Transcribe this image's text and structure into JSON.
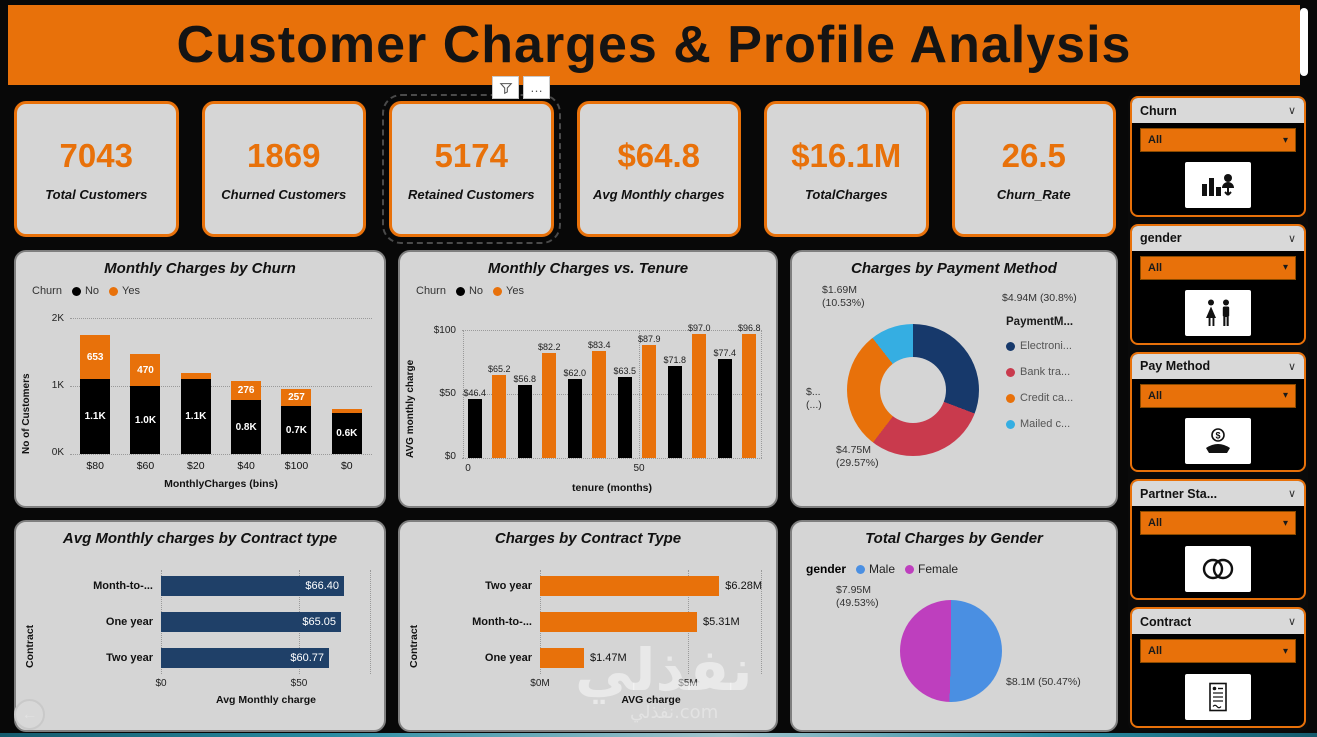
{
  "header": {
    "title": "Customer Charges & Profile Analysis"
  },
  "toolbar": {
    "more_label": "…"
  },
  "kpis": [
    {
      "value": "7043",
      "label": "Total Customers"
    },
    {
      "value": "1869",
      "label": "Churned Customers"
    },
    {
      "value": "5174",
      "label": "Retained Customers",
      "selected": true
    },
    {
      "value": "$64.8",
      "label": "Avg Monthly charges"
    },
    {
      "value": "$16.1M",
      "label": "TotalCharges"
    },
    {
      "value": "26.5",
      "label": "Churn_Rate"
    }
  ],
  "chart_data": [
    {
      "type": "bar",
      "variant": "stacked",
      "title": "Monthly Charges by Churn",
      "legend_title": "Churn",
      "categories": [
        "$80",
        "$60",
        "$20",
        "$40",
        "$100",
        "$0"
      ],
      "series": [
        {
          "name": "No",
          "color": "#000000",
          "values": [
            1100,
            1000,
            1100,
            800,
            700,
            600
          ],
          "labels": [
            "1.1K",
            "1.0K",
            "1.1K",
            "0.8K",
            "0.7K",
            "0.6K"
          ]
        },
        {
          "name": "Yes",
          "color": "#E8710A",
          "values": [
            653,
            470,
            90,
            276,
            257,
            55
          ],
          "labels": [
            "653",
            "470",
            "",
            "276",
            "257",
            ""
          ]
        }
      ],
      "xlabel": "MonthlyCharges (bins)",
      "ylabel": "No of Customers",
      "yticks": [
        "2K",
        "1K",
        "0K"
      ],
      "ylim": [
        0,
        2000
      ]
    },
    {
      "type": "bar",
      "variant": "grouped",
      "title": "Monthly Charges vs. Tenure",
      "legend_title": "Churn",
      "series": [
        {
          "name": "No",
          "color": "#000000",
          "values": [
            46.4,
            56.8,
            62.0,
            63.5,
            71.8,
            77.4
          ],
          "labels": [
            "$46.4",
            "$56.8",
            "$62.0",
            "$63.5",
            "$71.8",
            "$77.4"
          ]
        },
        {
          "name": "Yes",
          "color": "#E8710A",
          "values": [
            65.2,
            82.2,
            83.4,
            87.9,
            97.0,
            96.8
          ],
          "labels": [
            "$65.2",
            "$82.2",
            "$83.4",
            "$87.9",
            "$97.0",
            "$96.8"
          ]
        }
      ],
      "xlabel": "tenure (months)",
      "ylabel": "AVG monthly charge",
      "yticks": [
        "$100",
        "$50",
        "$0"
      ],
      "xticks": [
        "0",
        "50"
      ],
      "ylim": [
        0,
        100
      ]
    },
    {
      "type": "donut",
      "title": "Charges by Payment Method",
      "legend_title": "PaymentM...",
      "slices": [
        {
          "name": "Electroni...",
          "color": "#17396B",
          "value_label": "$4.94M",
          "pct_label": "(30.8%)",
          "pct": 30.8
        },
        {
          "name": "Bank tra...",
          "color": "#C93A4D",
          "value_label": "$4.75M",
          "pct_label": "(29.57%)",
          "pct": 29.57
        },
        {
          "name": "Credit ca...",
          "color": "#E8710A",
          "value_label": "$...",
          "pct_label": "(...)",
          "pct": 29.1
        },
        {
          "name": "Mailed c...",
          "color": "#35AEE2",
          "value_label": "$1.69M",
          "pct_label": "(10.53%)",
          "pct": 10.53
        }
      ]
    },
    {
      "type": "hbar",
      "title": "Avg Monthly charges by Contract type",
      "categories": [
        "Month-to-...",
        "One year",
        "Two year"
      ],
      "values": [
        66.4,
        65.05,
        60.77
      ],
      "labels": [
        "$66.40",
        "$65.05",
        "$60.77"
      ],
      "color": "#1F4068",
      "xticks": [
        "$0",
        "$50"
      ],
      "xtick_vals": [
        0,
        50
      ],
      "xlim": [
        0,
        76
      ],
      "xlabel": "Avg Monthly charge",
      "ylabel": "Contract"
    },
    {
      "type": "hbar",
      "title": "Charges by Contract Type",
      "categories": [
        "Two year",
        "Month-to-...",
        "One year"
      ],
      "values": [
        6.28,
        5.31,
        1.47
      ],
      "labels": [
        "$6.28M",
        "$5.31M",
        "$1.47M"
      ],
      "color": "#E8710A",
      "xticks": [
        "$0M",
        "$5M"
      ],
      "xtick_vals": [
        0,
        5
      ],
      "xlim": [
        0,
        7.5
      ],
      "xlabel": "AVG charge",
      "ylabel": "Contract"
    },
    {
      "type": "pie",
      "title": "Total Charges by Gender",
      "legend_title": "gender",
      "slices": [
        {
          "name": "Male",
          "color": "#4A8FE2",
          "value_label": "$8.1M",
          "pct_label": "(50.47%)",
          "pct": 50.47
        },
        {
          "name": "Female",
          "color": "#BE3FBE",
          "value_label": "$7.95M",
          "pct_label": "(49.53%)",
          "pct": 49.53
        }
      ]
    }
  ],
  "slicers": [
    {
      "label": "Churn",
      "value": "All"
    },
    {
      "label": "gender",
      "value": "All"
    },
    {
      "label": "Pay Method",
      "value": "All"
    },
    {
      "label": "Partner Sta...",
      "value": "All"
    },
    {
      "label": "Contract",
      "value": "All"
    }
  ],
  "watermark": {
    "main": "نفذلي",
    "sub": "نفذلي.com"
  },
  "colors": {
    "accent": "#E8710A",
    "navy": "#1F4068",
    "male_blue": "#4A8FE2",
    "female_magenta": "#BE3FBE"
  }
}
